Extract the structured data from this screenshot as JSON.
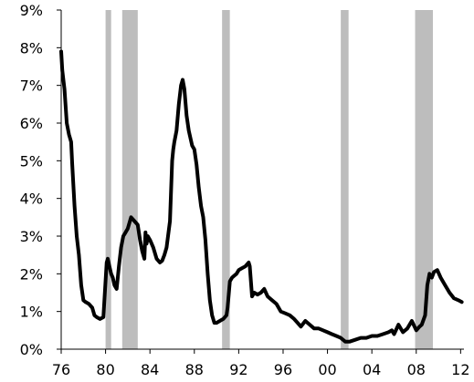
{
  "chart_data": {
    "type": "line",
    "title": "",
    "xlabel": "",
    "ylabel": "",
    "xlim": [
      1976,
      2012.3
    ],
    "ylim": [
      0,
      9
    ],
    "grid": false,
    "legend": "none",
    "colors": {
      "line": "#000000",
      "recession": "#bdbdbd",
      "axis": "#000000",
      "background": "#ffffff"
    },
    "y_ticks": [
      {
        "value": 0,
        "label": "0%"
      },
      {
        "value": 1,
        "label": "1%"
      },
      {
        "value": 2,
        "label": "2%"
      },
      {
        "value": 3,
        "label": "3%"
      },
      {
        "value": 4,
        "label": "4%"
      },
      {
        "value": 5,
        "label": "5%"
      },
      {
        "value": 6,
        "label": "6%"
      },
      {
        "value": 7,
        "label": "7%"
      },
      {
        "value": 8,
        "label": "8%"
      },
      {
        "value": 9,
        "label": "9%"
      }
    ],
    "x_ticks": [
      {
        "value": 1976,
        "label": "76"
      },
      {
        "value": 1980,
        "label": "80"
      },
      {
        "value": 1984,
        "label": "84"
      },
      {
        "value": 1988,
        "label": "88"
      },
      {
        "value": 1992,
        "label": "92"
      },
      {
        "value": 1996,
        "label": "96"
      },
      {
        "value": 2000,
        "label": "00"
      },
      {
        "value": 2004,
        "label": "04"
      },
      {
        "value": 2008,
        "label": "08"
      },
      {
        "value": 2012,
        "label": "12"
      }
    ],
    "recessions": [
      {
        "start": 1980.0,
        "end": 1980.5
      },
      {
        "start": 1981.5,
        "end": 1982.9
      },
      {
        "start": 1990.5,
        "end": 1991.2
      },
      {
        "start": 2001.2,
        "end": 2001.9
      },
      {
        "start": 2007.9,
        "end": 2009.5
      }
    ],
    "series": [
      {
        "x": [
          1976.0,
          1976.1,
          1976.3,
          1976.5,
          1976.7,
          1976.9,
          1977.0,
          1977.2,
          1977.4,
          1977.6,
          1977.8,
          1978.0,
          1978.2,
          1978.5,
          1978.8,
          1979.0,
          1979.2,
          1979.5,
          1979.8,
          1980.1,
          1980.2,
          1980.35,
          1980.5,
          1980.65,
          1980.8,
          1981.0,
          1981.2,
          1981.4,
          1981.6,
          1981.8,
          1982.0,
          1982.3,
          1982.6,
          1982.9,
          1983.1,
          1983.3,
          1983.5,
          1983.6,
          1983.7,
          1983.8,
          1983.9,
          1984.0,
          1984.3,
          1984.6,
          1984.9,
          1985.1,
          1985.3,
          1985.5,
          1985.8,
          1986.0,
          1986.1,
          1986.2,
          1986.4,
          1986.6,
          1986.8,
          1986.95,
          1987.1,
          1987.3,
          1987.5,
          1987.8,
          1988.0,
          1988.2,
          1988.4,
          1988.6,
          1988.8,
          1989.0,
          1989.2,
          1989.4,
          1989.6,
          1989.8,
          1990.0,
          1990.3,
          1990.6,
          1990.9,
          1991.0,
          1991.2,
          1991.4,
          1991.6,
          1991.8,
          1992.0,
          1992.3,
          1992.6,
          1992.9,
          1993.0,
          1993.2,
          1993.4,
          1993.7,
          1994.0,
          1994.3,
          1994.6,
          1995.0,
          1995.4,
          1995.8,
          1996.2,
          1996.6,
          1997.0,
          1997.3,
          1997.6,
          1998.0,
          1998.4,
          1998.8,
          1999.2,
          1999.6,
          2000.0,
          2000.4,
          2000.8,
          2001.2,
          2001.6,
          2002.0,
          2002.5,
          2003.0,
          2003.5,
          2004.0,
          2004.5,
          2005.0,
          2005.5,
          2005.8,
          2006.0,
          2006.4,
          2006.8,
          2007.2,
          2007.6,
          2008.0,
          2008.3,
          2008.5,
          2008.8,
          2009.0,
          2009.2,
          2009.4,
          2009.6,
          2009.9,
          2010.2,
          2010.6,
          2011.0,
          2011.4,
          2011.8,
          2012.1
        ],
        "values": [
          7.9,
          7.4,
          6.9,
          6.0,
          5.7,
          5.5,
          4.9,
          3.8,
          3.0,
          2.5,
          1.7,
          1.3,
          1.25,
          1.2,
          1.1,
          0.9,
          0.85,
          0.8,
          0.85,
          2.3,
          2.4,
          2.2,
          2.0,
          1.9,
          1.7,
          1.6,
          2.2,
          2.7,
          3.0,
          3.1,
          3.2,
          3.5,
          3.4,
          3.3,
          2.9,
          2.6,
          2.4,
          3.1,
          2.8,
          3.0,
          2.95,
          2.9,
          2.7,
          2.4,
          2.3,
          2.35,
          2.5,
          2.7,
          3.4,
          5.0,
          5.3,
          5.5,
          5.8,
          6.5,
          7.0,
          7.15,
          6.9,
          6.2,
          5.8,
          5.4,
          5.3,
          4.9,
          4.3,
          3.8,
          3.5,
          2.9,
          2.0,
          1.3,
          0.9,
          0.7,
          0.7,
          0.75,
          0.8,
          0.9,
          1.1,
          1.8,
          1.9,
          1.95,
          2.0,
          2.1,
          2.15,
          2.2,
          2.3,
          2.2,
          1.4,
          1.5,
          1.45,
          1.5,
          1.6,
          1.4,
          1.3,
          1.2,
          1.0,
          0.95,
          0.9,
          0.8,
          0.7,
          0.6,
          0.75,
          0.65,
          0.55,
          0.55,
          0.5,
          0.45,
          0.4,
          0.35,
          0.3,
          0.2,
          0.2,
          0.25,
          0.3,
          0.3,
          0.35,
          0.35,
          0.4,
          0.45,
          0.5,
          0.4,
          0.65,
          0.45,
          0.55,
          0.75,
          0.5,
          0.6,
          0.65,
          0.9,
          1.7,
          2.0,
          1.9,
          2.05,
          2.1,
          1.9,
          1.7,
          1.5,
          1.35,
          1.3,
          1.25
        ]
      }
    ]
  }
}
